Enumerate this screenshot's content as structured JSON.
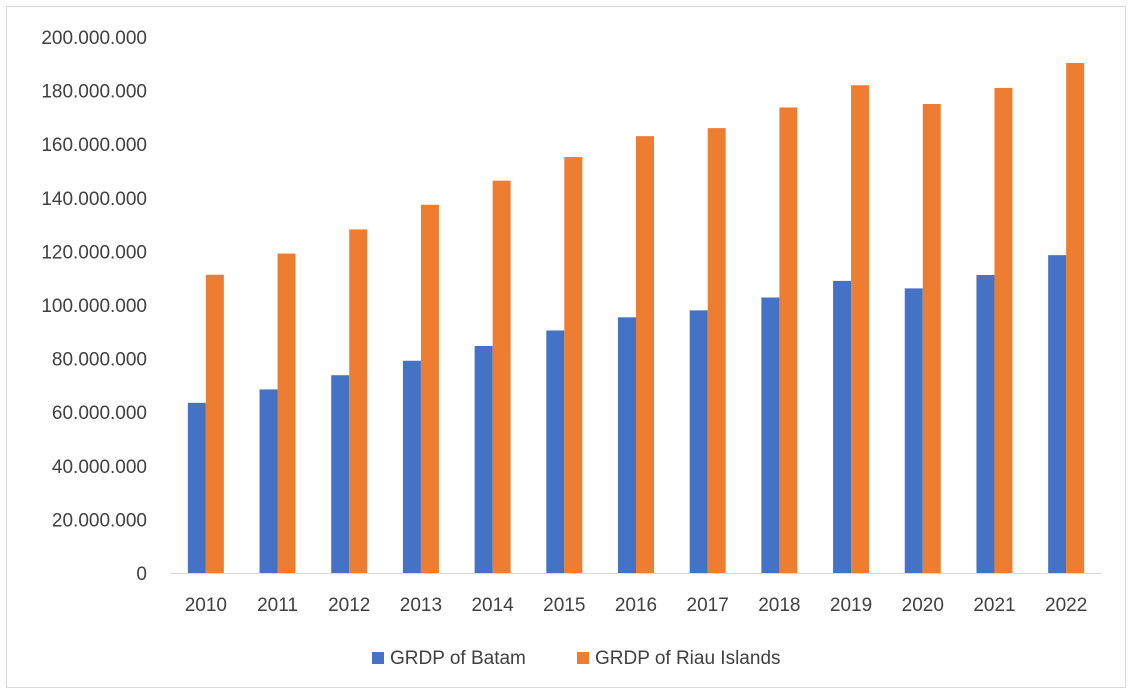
{
  "chart_data": {
    "type": "bar",
    "title": "",
    "xlabel": "",
    "ylabel": "",
    "ylim": [
      0,
      200000000
    ],
    "y_ticks": [
      0,
      20000000,
      40000000,
      60000000,
      80000000,
      100000000,
      120000000,
      140000000,
      160000000,
      180000000,
      200000000
    ],
    "y_tick_labels": [
      "0",
      "20.000.000",
      "40.000.000",
      "60.000.000",
      "80.000.000",
      "100.000.000",
      "120.000.000",
      "140.000.000",
      "160.000.000",
      "180.000.000",
      "200.000.000"
    ],
    "grid": false,
    "legend_position": "bottom",
    "categories": [
      "2010",
      "2011",
      "2012",
      "2013",
      "2014",
      "2015",
      "2016",
      "2017",
      "2018",
      "2019",
      "2020",
      "2021",
      "2022"
    ],
    "series": [
      {
        "name": "GRDP of Batam",
        "color": "#4472C4",
        "values": [
          63500000,
          68500000,
          73800000,
          79200000,
          84700000,
          90500000,
          95400000,
          98000000,
          102800000,
          109000000,
          106200000,
          111200000,
          118600000
        ]
      },
      {
        "name": "GRDP of Riau Islands",
        "color": "#ED7D31",
        "values": [
          111300000,
          119200000,
          128200000,
          137400000,
          146400000,
          155200000,
          163000000,
          166000000,
          173700000,
          182000000,
          175000000,
          181000000,
          190300000
        ]
      }
    ]
  }
}
